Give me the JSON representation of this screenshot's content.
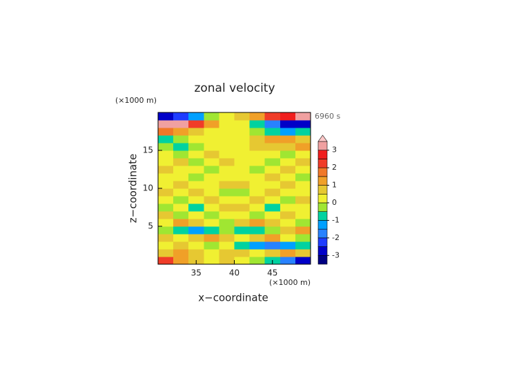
{
  "chart_data": {
    "type": "contour",
    "title": "zonal velocity",
    "time_label": "6960 s",
    "x_label": "x−coordinate",
    "y_label": "z−coordinate",
    "x_unit": "(×1000 m)",
    "y_unit": "(×1000 m)",
    "xlim": [
      30,
      50
    ],
    "ylim": [
      0,
      20
    ],
    "xticks": [
      35,
      40,
      45
    ],
    "yticks": [
      5,
      10,
      15
    ],
    "x": [
      31,
      33,
      35,
      37,
      39,
      41,
      43,
      45,
      47,
      49
    ],
    "y": [
      0.5,
      1.5,
      2.5,
      3.5,
      4.5,
      5.5,
      6.5,
      7.5,
      8.5,
      9.5,
      10.5,
      11.5,
      12.5,
      13.5,
      14.5,
      15.5,
      16.5,
      17.5,
      18.5,
      19.5
    ],
    "values": [
      [
        2,
        1,
        0.5,
        0,
        0.5,
        0,
        -0.5,
        -1,
        -2,
        -3
      ],
      [
        0.5,
        1,
        0.5,
        0,
        0.5,
        0.5,
        0,
        0.5,
        1,
        0.5
      ],
      [
        0,
        0.5,
        0,
        -0.5,
        0,
        -1,
        -1.5,
        -2,
        -1.5,
        -1
      ],
      [
        0.5,
        0,
        0.5,
        1,
        0.5,
        0,
        0.5,
        1,
        0,
        -0.5
      ],
      [
        -0.5,
        -1,
        -1.5,
        -1,
        -0.5,
        -1,
        -1,
        -0.5,
        0.5,
        1
      ],
      [
        0,
        1,
        0.5,
        0,
        -0.5,
        0.5,
        1,
        0.5,
        0,
        -0.5
      ],
      [
        0.5,
        -0.5,
        0,
        -0.5,
        0,
        0,
        -0.5,
        0,
        0.5,
        0
      ],
      [
        -0.5,
        0,
        -1,
        0,
        0.5,
        0.5,
        0,
        -1,
        0,
        0
      ],
      [
        0,
        -0.5,
        0,
        0.5,
        0,
        0,
        0.5,
        0,
        -0.5,
        0.5
      ],
      [
        0.5,
        0,
        0.5,
        0,
        -0.5,
        -0.5,
        0,
        0.5,
        0,
        0
      ],
      [
        0,
        0.5,
        0,
        0,
        0.5,
        0.5,
        0,
        0,
        0.5,
        0
      ],
      [
        0,
        0,
        -0.5,
        0,
        0,
        0,
        0,
        0.5,
        0,
        -0.5
      ],
      [
        0.5,
        0,
        0,
        -0.5,
        0,
        0,
        -0.5,
        0,
        0.5,
        0
      ],
      [
        0,
        0.5,
        -0.5,
        0,
        0.5,
        0,
        0,
        -0.5,
        0,
        0.5
      ],
      [
        0,
        -0.5,
        0,
        0.5,
        0,
        0,
        0,
        0,
        -0.5,
        0
      ],
      [
        -0.5,
        -1,
        -0.5,
        0,
        0,
        0,
        0.5,
        0.5,
        0.5,
        1
      ],
      [
        -1,
        -0.5,
        0,
        0,
        0,
        0,
        0.5,
        1,
        1,
        0.5
      ],
      [
        1.5,
        1,
        0.5,
        0,
        0,
        0,
        -0.5,
        -1,
        -1.5,
        -1
      ],
      [
        3,
        3,
        2,
        1,
        0,
        0,
        -1,
        -2,
        -3,
        -3
      ],
      [
        -3,
        -2.5,
        -1.5,
        -0.5,
        0,
        0.5,
        1,
        2,
        2.5,
        3
      ]
    ],
    "colorbar": {
      "clim": [
        -3.5,
        3.5
      ],
      "levels": [
        -3,
        -2.5,
        -2,
        -1.5,
        -1,
        -0.5,
        0,
        0.5,
        1,
        1.5,
        2,
        2.5,
        3,
        3.5
      ],
      "colors": [
        "#000082",
        "#0000c8",
        "#1e3cff",
        "#2882ff",
        "#00a0ff",
        "#00d2a0",
        "#a0e632",
        "#f0f032",
        "#e6c832",
        "#f0a028",
        "#f07828",
        "#f03c28",
        "#f01e1e",
        "#f0a0a0",
        "#ffc8c8"
      ],
      "ticks": [
        -3,
        -2,
        -1,
        0,
        1,
        2,
        3
      ]
    }
  }
}
